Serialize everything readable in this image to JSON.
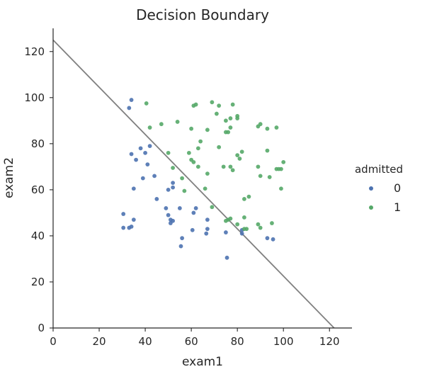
{
  "chart_data": {
    "type": "scatter",
    "title": "Decision Boundary",
    "xlabel": "exam1",
    "ylabel": "exam2",
    "xlim": [
      0,
      130
    ],
    "ylim": [
      0,
      130
    ],
    "xticks": [
      0,
      20,
      40,
      60,
      80,
      100,
      120
    ],
    "yticks": [
      0,
      20,
      40,
      60,
      80,
      100,
      120
    ],
    "grid": false,
    "legend": {
      "title": "admitted",
      "placement": "right",
      "entries": [
        {
          "label": "0",
          "color": "#4c72b0"
        },
        {
          "label": "1",
          "color": "#55a868"
        }
      ]
    },
    "boundary_line": {
      "color": "#808080",
      "points": [
        [
          0,
          125
        ],
        [
          122,
          0
        ]
      ]
    },
    "series": [
      {
        "name": "0",
        "color": "#4c72b0",
        "points": [
          [
            34,
            99
          ],
          [
            33,
            95.5
          ],
          [
            38,
            78
          ],
          [
            40,
            76
          ],
          [
            41,
            71
          ],
          [
            42,
            79
          ],
          [
            34,
            75.5
          ],
          [
            36,
            73
          ],
          [
            44,
            66
          ],
          [
            39,
            65
          ],
          [
            35,
            60.5
          ],
          [
            45,
            56
          ],
          [
            50,
            60
          ],
          [
            52,
            61
          ],
          [
            52,
            63
          ],
          [
            30.5,
            49.5
          ],
          [
            30.5,
            43.5
          ],
          [
            33,
            43.5
          ],
          [
            34,
            44
          ],
          [
            35,
            47
          ],
          [
            49,
            52
          ],
          [
            50,
            49
          ],
          [
            51,
            47
          ],
          [
            51,
            45.5
          ],
          [
            52,
            46.5
          ],
          [
            55,
            52
          ],
          [
            56,
            39
          ],
          [
            55.5,
            35.5
          ],
          [
            60.5,
            42.5
          ],
          [
            61,
            50
          ],
          [
            62,
            52
          ],
          [
            66.5,
            41
          ],
          [
            67,
            43
          ],
          [
            67,
            47
          ],
          [
            75,
            41.5
          ],
          [
            75.5,
            30.5
          ],
          [
            82,
            42.5
          ],
          [
            82,
            41
          ],
          [
            93,
            39
          ],
          [
            95.5,
            38.5
          ]
        ]
      },
      {
        "name": "1",
        "color": "#55a868",
        "points": [
          [
            40.5,
            97.5
          ],
          [
            42,
            87
          ],
          [
            47,
            88.5
          ],
          [
            54,
            89.5
          ],
          [
            60,
            86.5
          ],
          [
            61,
            96.5
          ],
          [
            62,
            97
          ],
          [
            64,
            81
          ],
          [
            67,
            86
          ],
          [
            69,
            98
          ],
          [
            71,
            93
          ],
          [
            72,
            96.5
          ],
          [
            75,
            90
          ],
          [
            75,
            85
          ],
          [
            76,
            85
          ],
          [
            77,
            87
          ],
          [
            77,
            91
          ],
          [
            78,
            97
          ],
          [
            80,
            92
          ],
          [
            80,
            91
          ],
          [
            89,
            87.5
          ],
          [
            90,
            88.5
          ],
          [
            93,
            86.5
          ],
          [
            97,
            87
          ],
          [
            50,
            76
          ],
          [
            52,
            69.5
          ],
          [
            56,
            65
          ],
          [
            57,
            59.5
          ],
          [
            59,
            76
          ],
          [
            60,
            73
          ],
          [
            61,
            72
          ],
          [
            63,
            78
          ],
          [
            63,
            70
          ],
          [
            66,
            60.5
          ],
          [
            67,
            67
          ],
          [
            72,
            78.5
          ],
          [
            74,
            70
          ],
          [
            77,
            70
          ],
          [
            78,
            68.5
          ],
          [
            80,
            75
          ],
          [
            81,
            73.5
          ],
          [
            82,
            76.5
          ],
          [
            83,
            56
          ],
          [
            85,
            57
          ],
          [
            89,
            70
          ],
          [
            90,
            66
          ],
          [
            93,
            77
          ],
          [
            94,
            65.5
          ],
          [
            97,
            69
          ],
          [
            98,
            69
          ],
          [
            99,
            60.5
          ],
          [
            100,
            72
          ],
          [
            99,
            69
          ],
          [
            69,
            52.5
          ],
          [
            75,
            46.5
          ],
          [
            76,
            47
          ],
          [
            77,
            47.5
          ],
          [
            80,
            45
          ],
          [
            83,
            43
          ],
          [
            83,
            48
          ],
          [
            84,
            43
          ],
          [
            89,
            45
          ],
          [
            90,
            43.5
          ],
          [
            95,
            45.5
          ]
        ]
      }
    ]
  }
}
